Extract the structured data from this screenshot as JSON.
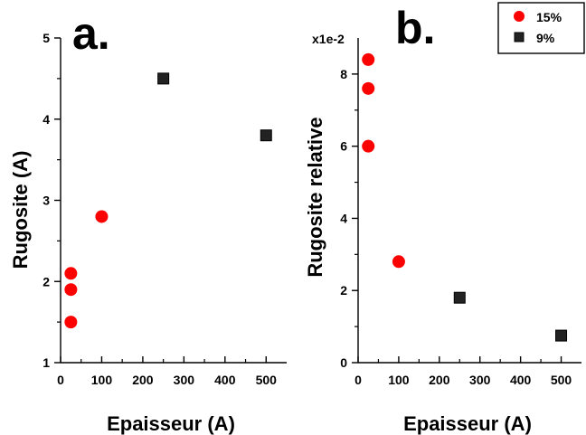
{
  "colors": {
    "series_15": "#ff0000",
    "series_9": "#222222",
    "axis": "#000000",
    "background": "#ffffff"
  },
  "legend": {
    "placement": "top-right",
    "items": [
      {
        "label": "15%",
        "marker": "circle",
        "color": "#ff0000"
      },
      {
        "label": "9%",
        "marker": "square",
        "color": "#222222"
      }
    ]
  },
  "chart_data": [
    {
      "type": "scatter",
      "panel_label": "a.",
      "xlabel": "Epaisseur (A)",
      "ylabel": "Rugosite (A)",
      "y_multiplier_label": "",
      "xlim": [
        0,
        550
      ],
      "ylim": [
        1,
        5
      ],
      "xticks": [
        0,
        100,
        200,
        300,
        400,
        500
      ],
      "yticks": [
        1,
        2,
        3,
        4,
        5
      ],
      "grid": false,
      "series": [
        {
          "name": "15%",
          "marker": "circle",
          "color": "#ff0000",
          "x": [
            25,
            25,
            25,
            100
          ],
          "y": [
            2.1,
            1.9,
            1.5,
            2.8
          ]
        },
        {
          "name": "9%",
          "marker": "square",
          "color": "#222222",
          "x": [
            250,
            500
          ],
          "y": [
            4.5,
            3.8
          ]
        }
      ]
    },
    {
      "type": "scatter",
      "panel_label": "b.",
      "xlabel": "Epaisseur (A)",
      "ylabel": "Rugosite relative",
      "y_multiplier_label": "x1e-2",
      "xlim": [
        0,
        550
      ],
      "ylim": [
        0,
        9
      ],
      "xticks": [
        0,
        100,
        200,
        300,
        400,
        500
      ],
      "yticks": [
        0,
        2,
        4,
        6,
        8
      ],
      "grid": false,
      "series": [
        {
          "name": "15%",
          "marker": "circle",
          "color": "#ff0000",
          "x": [
            25,
            25,
            25,
            100
          ],
          "y": [
            8.4,
            7.6,
            6.0,
            2.8
          ]
        },
        {
          "name": "9%",
          "marker": "square",
          "color": "#222222",
          "x": [
            250,
            500
          ],
          "y": [
            1.8,
            0.75
          ]
        }
      ]
    }
  ]
}
